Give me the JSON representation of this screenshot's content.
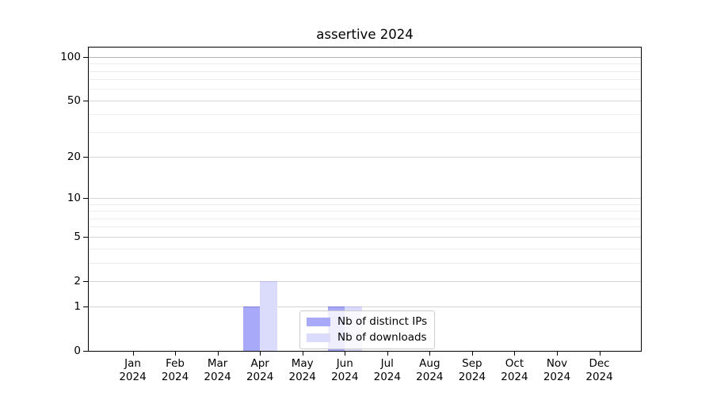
{
  "chart_data": {
    "type": "bar",
    "title": "assertive 2024",
    "categories": [
      "Jan 2024",
      "Feb 2024",
      "Mar 2024",
      "Apr 2024",
      "May 2024",
      "Jun 2024",
      "Jul 2024",
      "Aug 2024",
      "Sep 2024",
      "Oct 2024",
      "Nov 2024",
      "Dec 2024"
    ],
    "series": [
      {
        "name": "Nb of distinct IPs",
        "color": "#a9a9f9",
        "edge": "rgba(70,70,170,0.45)",
        "values": [
          0,
          0,
          0,
          1,
          0,
          1,
          0,
          0,
          0,
          0,
          0,
          0
        ]
      },
      {
        "name": "Nb of downloads",
        "color": "#dbdbfb",
        "edge": "rgba(70,70,170,0.22)",
        "values": [
          0,
          0,
          0,
          2,
          0,
          1,
          0,
          0,
          0,
          0,
          0,
          0
        ]
      }
    ],
    "xlabel": "",
    "ylabel": "",
    "yscale": "log1p",
    "ylim": [
      0,
      115
    ],
    "ytick_major": [
      0,
      1,
      2,
      5,
      10,
      20,
      50,
      100
    ],
    "ytick_minor": [
      3,
      4,
      6,
      7,
      8,
      9,
      30,
      40,
      60,
      70,
      80,
      90
    ],
    "grid": "horizontal",
    "legend_position": "lower-center",
    "colors": {
      "grid_major": "#d6d6d6",
      "grid_minor": "#ededed",
      "grid_top": "#b3b3b3",
      "spine": "#000000",
      "background": "#ffffff"
    }
  }
}
